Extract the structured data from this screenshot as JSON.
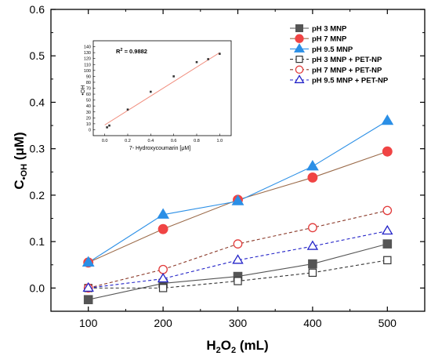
{
  "chart_data": {
    "type": "line",
    "xlabel": "H",
    "xlabel_sub": "2",
    "xlabel_mid": "O",
    "xlabel_sub2": "2",
    "xlabel_suffix": " (mL)",
    "ylabel": "C",
    "ylabel_sub": "•OH",
    "ylabel_suffix": " (μM)",
    "x": [
      100,
      200,
      300,
      400,
      500
    ],
    "x_ticks": [
      "100",
      "200",
      "300",
      "400",
      "500"
    ],
    "xlim": [
      50,
      550
    ],
    "ylim": [
      -0.05,
      0.6
    ],
    "y_ticks": [
      "0.0",
      "0.1",
      "0.2",
      "0.3",
      "0.4",
      "0.5",
      "0.6"
    ],
    "y_tick_values": [
      0.0,
      0.1,
      0.2,
      0.3,
      0.4,
      0.5,
      0.6
    ],
    "legend_position": "top-right",
    "series": [
      {
        "name": "pH 3 MNP",
        "values": [
          -0.025,
          0.01,
          0.025,
          0.052,
          0.095
        ],
        "color": "#555555",
        "marker": "square",
        "filled": true,
        "dashed": false
      },
      {
        "name": "pH 7 MNP",
        "values": [
          0.055,
          0.127,
          0.19,
          0.238,
          0.294
        ],
        "color": "#f04444",
        "marker": "circle",
        "filled": true,
        "dashed": false,
        "line_color": "#9b6b4a"
      },
      {
        "name": "pH 9.5 MNP",
        "values": [
          0.055,
          0.158,
          0.187,
          0.262,
          0.36
        ],
        "color": "#2b8fe6",
        "marker": "triangle",
        "filled": true,
        "dashed": false
      },
      {
        "name": "pH 3 MNP + PET-NP",
        "values": [
          0.0,
          0.0,
          0.015,
          0.033,
          0.06
        ],
        "color": "#333333",
        "marker": "square",
        "filled": false,
        "dashed": true
      },
      {
        "name": "pH 7 MNP + PET-NP",
        "values": [
          0.0,
          0.04,
          0.095,
          0.13,
          0.167
        ],
        "color": "#e23b3b",
        "marker": "circle",
        "filled": false,
        "dashed": true,
        "line_color": "#8b3a2a"
      },
      {
        "name": "pH 9.5 MNP + PET-NP",
        "values": [
          0.0,
          0.02,
          0.06,
          0.09,
          0.123
        ],
        "color": "#2323c8",
        "marker": "triangle",
        "filled": false,
        "dashed": true
      }
    ],
    "inset": {
      "type": "scatter",
      "annotation": "R",
      "annotation_sup": "2",
      "annotation_value": " = 0.9882",
      "xlabel": "7- Hydroxycoumarin [μM]",
      "ylabel": "•OH",
      "xlim": [
        -0.1,
        1.1
      ],
      "ylim": [
        -10,
        150
      ],
      "x_ticks": [
        "0.0",
        "0.2",
        "0.4",
        "0.6",
        "0.8",
        "1.0"
      ],
      "x_tick_values": [
        0.0,
        0.2,
        0.4,
        0.6,
        0.8,
        1.0
      ],
      "y_ticks": [
        "0",
        "10",
        "20",
        "30",
        "40",
        "50",
        "60",
        "70",
        "80",
        "90",
        "100",
        "110",
        "120",
        "130",
        "140"
      ],
      "y_tick_values": [
        0,
        10,
        20,
        30,
        40,
        50,
        60,
        70,
        80,
        90,
        100,
        110,
        120,
        130,
        140
      ],
      "points_x": [
        0.02,
        0.04,
        0.2,
        0.4,
        0.6,
        0.8,
        0.9,
        1.0
      ],
      "points_y": [
        4,
        7,
        34,
        64,
        90,
        114,
        119,
        128
      ],
      "fit_x": [
        0.0,
        1.0
      ],
      "fit_y": [
        8,
        130
      ],
      "fit_color": "#f08a7a",
      "point_color": "#333333"
    }
  }
}
